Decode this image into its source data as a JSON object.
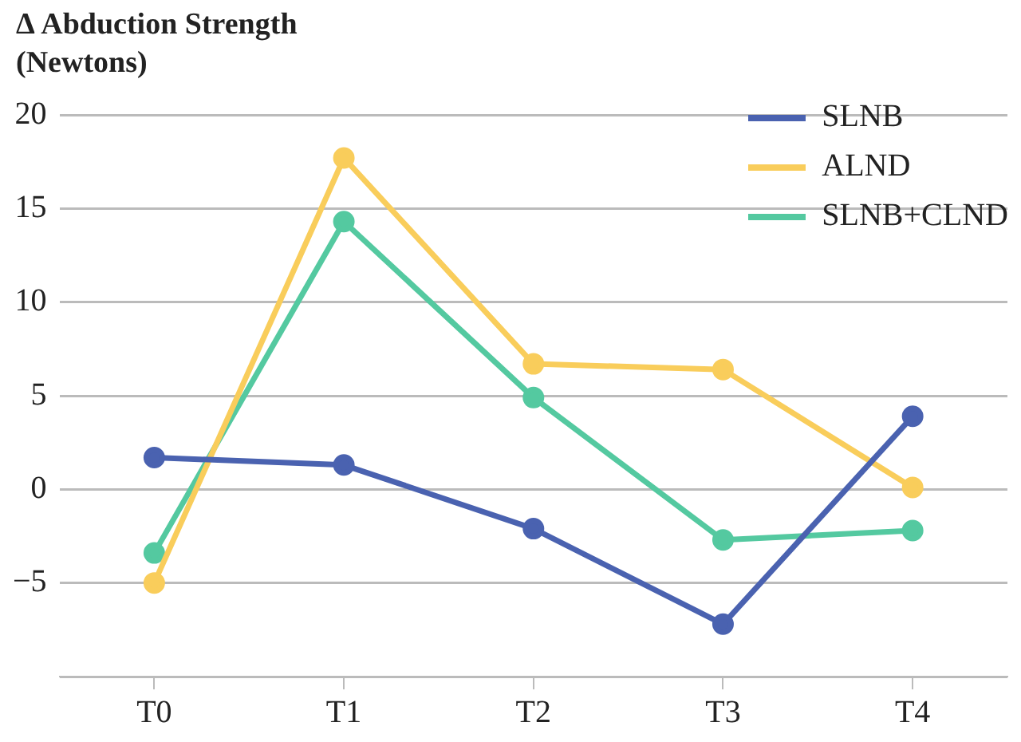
{
  "chart_data": {
    "type": "line",
    "ylabel": "Δ Abduction Strength (Newtons)",
    "categories": [
      "T0",
      "T1",
      "T2",
      "T3",
      "T4"
    ],
    "series": [
      {
        "name": "SLNB",
        "color": "#4a62b0",
        "values": [
          1.7,
          1.3,
          -2.1,
          -7.2,
          3.9
        ]
      },
      {
        "name": "ALND",
        "color": "#f9cd5b",
        "values": [
          -5.0,
          17.7,
          6.7,
          6.4,
          0.1
        ]
      },
      {
        "name": "SLNB+CLND",
        "color": "#54c9a0",
        "values": [
          -3.4,
          14.3,
          4.9,
          -2.7,
          -2.2
        ]
      }
    ],
    "ylim": [
      -10,
      20
    ],
    "yticks": [
      {
        "value": -10,
        "label": null
      },
      -5,
      0,
      5,
      10,
      15,
      20
    ],
    "grid": "y",
    "legend": "top right",
    "marker": "circle",
    "line_style": "solid"
  }
}
